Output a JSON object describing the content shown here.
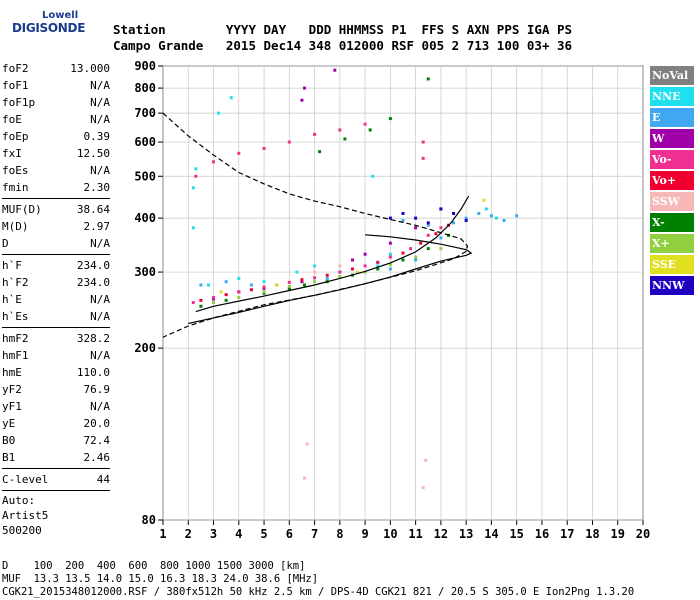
{
  "logo": {
    "line1": "Lowell",
    "line2": "DIGISONDE"
  },
  "header": {
    "row1": "Station        YYYY DAY   DDD HHMMSS P1  FFS S AXN PPS IGA PS",
    "row2": "Campo Grande   2015 Dec14 348 012000 RSF 005 2 713 100 03+ 36"
  },
  "params": {
    "group1": [
      {
        "name": "foF2",
        "value": "13.000"
      },
      {
        "name": "foF1",
        "value": "N/A"
      },
      {
        "name": "foF1p",
        "value": "N/A"
      },
      {
        "name": "foE",
        "value": "N/A"
      },
      {
        "name": "foEp",
        "value": "0.39"
      },
      {
        "name": "fxI",
        "value": "12.50"
      },
      {
        "name": "foEs",
        "value": "N/A"
      },
      {
        "name": "fmin",
        "value": "2.30"
      }
    ],
    "group2": [
      {
        "name": "MUF(D)",
        "value": "38.64"
      },
      {
        "name": "M(D)",
        "value": "2.97"
      },
      {
        "name": "D",
        "value": "N/A"
      }
    ],
    "group3": [
      {
        "name": "h`F",
        "value": "234.0"
      },
      {
        "name": "h`F2",
        "value": "234.0"
      },
      {
        "name": "h`E",
        "value": "N/A"
      },
      {
        "name": "h`Es",
        "value": "N/A"
      }
    ],
    "group4": [
      {
        "name": "hmF2",
        "value": "328.2"
      },
      {
        "name": "hmF1",
        "value": "N/A"
      },
      {
        "name": "hmE",
        "value": "110.0"
      },
      {
        "name": "yF2",
        "value": "76.9"
      },
      {
        "name": "yF1",
        "value": "N/A"
      },
      {
        "name": "yE",
        "value": "20.0"
      },
      {
        "name": "B0",
        "value": "72.4"
      },
      {
        "name": "B1",
        "value": "2.46"
      }
    ],
    "group5": [
      {
        "name": "C-level",
        "value": "44"
      }
    ],
    "free": [
      "Auto:",
      "Artist5",
      "500200"
    ]
  },
  "legend": [
    {
      "label": "NoVal",
      "color": "#808080"
    },
    {
      "label": "NNE",
      "color": "#20e0f0"
    },
    {
      "label": "E",
      "color": "#40a8f0"
    },
    {
      "label": "W",
      "color": "#a000a8"
    },
    {
      "label": "Vo-",
      "color": "#f03090"
    },
    {
      "label": "Vo+",
      "color": "#f00030"
    },
    {
      "label": "SSW",
      "color": "#f8b8b8"
    },
    {
      "label": "X-",
      "color": "#008000"
    },
    {
      "label": "X+",
      "color": "#90d040"
    },
    {
      "label": "SSE",
      "color": "#e0e020"
    },
    {
      "label": "NNW",
      "color": "#2000c0"
    }
  ],
  "footer": {
    "line1": "D    100  200  400  600  800 1000 1500 3000 [km]",
    "line2": "MUF  13.3 13.5 14.0 15.0 16.3 18.3 24.0 38.6 [MHz]",
    "line3": "CGK21_2015348012000.RSF / 380fx512h 50 kHz 2.5 km / DPS-4D CGK21 821 / 20.5 S 305.0 E Ion2Png 1.3.20"
  },
  "chart_data": {
    "type": "scatter",
    "xlim": [
      1,
      20
    ],
    "ylim": [
      80,
      900
    ],
    "yscale": "log",
    "xticks": [
      1,
      2,
      3,
      4,
      5,
      6,
      7,
      8,
      9,
      10,
      11,
      12,
      13,
      14,
      15,
      16,
      17,
      18,
      19,
      20
    ],
    "yticks": [
      80,
      200,
      300,
      400,
      500,
      600,
      700,
      800,
      900
    ],
    "grid": true,
    "series": [
      {
        "name": "E",
        "color": "#40a8f0",
        "points": [
          [
            2.5,
            280
          ],
          [
            3.5,
            285
          ],
          [
            4.5,
            280
          ],
          [
            6,
            275
          ],
          [
            7.5,
            290
          ],
          [
            9,
            300
          ],
          [
            10,
            305
          ],
          [
            11,
            320
          ],
          [
            12,
            360
          ],
          [
            12.5,
            390
          ],
          [
            13,
            400
          ],
          [
            13.5,
            410
          ],
          [
            14,
            405
          ],
          [
            14.5,
            395
          ],
          [
            15,
            405
          ],
          [
            10.5,
            395
          ],
          [
            11.5,
            385
          ]
        ]
      },
      {
        "name": "NNE",
        "color": "#20e0f0",
        "points": [
          [
            2.2,
            470
          ],
          [
            2.3,
            520
          ],
          [
            2.2,
            380
          ],
          [
            2.8,
            280
          ],
          [
            3.2,
            700
          ],
          [
            4,
            290
          ],
          [
            5,
            285
          ],
          [
            6.3,
            300
          ],
          [
            7,
            310
          ],
          [
            8,
            300
          ],
          [
            9.5,
            310
          ],
          [
            10,
            330
          ],
          [
            13.8,
            420
          ],
          [
            14.2,
            400
          ],
          [
            3.7,
            760
          ],
          [
            9.3,
            500
          ]
        ]
      },
      {
        "name": "W",
        "color": "#a000a8",
        "points": [
          [
            3,
            260
          ],
          [
            4,
            270
          ],
          [
            5,
            275
          ],
          [
            6.5,
            285
          ],
          [
            6.5,
            750
          ],
          [
            6.6,
            800
          ],
          [
            7.8,
            880
          ],
          [
            8.5,
            320
          ],
          [
            9,
            330
          ],
          [
            10,
            350
          ],
          [
            11,
            380
          ],
          [
            12,
            420
          ]
        ]
      },
      {
        "name": "Vo-",
        "color": "#f03090",
        "points": [
          [
            2.2,
            255
          ],
          [
            3,
            262
          ],
          [
            4,
            270
          ],
          [
            5,
            277
          ],
          [
            6,
            284
          ],
          [
            7,
            291
          ],
          [
            8,
            300
          ],
          [
            9,
            310
          ],
          [
            10,
            325
          ],
          [
            10.8,
            340
          ],
          [
            11.5,
            365
          ],
          [
            12,
            380
          ],
          [
            2.3,
            500
          ],
          [
            3,
            540
          ],
          [
            4,
            565
          ],
          [
            5,
            580
          ],
          [
            6,
            600
          ],
          [
            7,
            625
          ],
          [
            8,
            640
          ],
          [
            9,
            660
          ],
          [
            11.3,
            600
          ],
          [
            11.3,
            550
          ]
        ]
      },
      {
        "name": "Vo+",
        "color": "#f00030",
        "points": [
          [
            2.5,
            258
          ],
          [
            3.5,
            266
          ],
          [
            4.5,
            273
          ],
          [
            5.5,
            280
          ],
          [
            6.5,
            288
          ],
          [
            7.5,
            295
          ],
          [
            8.5,
            305
          ],
          [
            9.5,
            316
          ],
          [
            10.5,
            332
          ],
          [
            11.2,
            350
          ],
          [
            11.8,
            368
          ],
          [
            12.3,
            385
          ]
        ]
      },
      {
        "name": "SSW",
        "color": "#f8b8b8",
        "points": [
          [
            6.6,
            100
          ],
          [
            6.7,
            120
          ],
          [
            11.3,
            95
          ],
          [
            11.4,
            110
          ],
          [
            7,
            300
          ],
          [
            8,
            310
          ]
        ]
      },
      {
        "name": "X-",
        "color": "#008000",
        "points": [
          [
            2.5,
            250
          ],
          [
            3.5,
            258
          ],
          [
            5,
            268
          ],
          [
            6,
            275
          ],
          [
            7.5,
            285
          ],
          [
            8.5,
            295
          ],
          [
            9.5,
            305
          ],
          [
            10.5,
            320
          ],
          [
            11.5,
            340
          ],
          [
            12.3,
            365
          ],
          [
            6.6,
            280
          ],
          [
            7.2,
            570
          ],
          [
            8.2,
            610
          ],
          [
            9.2,
            640
          ],
          [
            10,
            680
          ],
          [
            11.5,
            840
          ]
        ]
      },
      {
        "name": "X+",
        "color": "#90d040",
        "points": [
          [
            3,
            255
          ],
          [
            4,
            262
          ],
          [
            5,
            270
          ],
          [
            6,
            278
          ],
          [
            7,
            285
          ],
          [
            8,
            293
          ],
          [
            9,
            300
          ],
          [
            10,
            312
          ],
          [
            11,
            325
          ],
          [
            12,
            340
          ]
        ]
      },
      {
        "name": "SSE",
        "color": "#e0e020",
        "points": [
          [
            3.3,
            270
          ],
          [
            5.5,
            280
          ],
          [
            8.7,
            300
          ],
          [
            12.5,
            410
          ],
          [
            13.7,
            440
          ]
        ]
      },
      {
        "name": "NNW",
        "color": "#2000c0",
        "points": [
          [
            10,
            400
          ],
          [
            10.5,
            410
          ],
          [
            11,
            400
          ],
          [
            11.5,
            390
          ],
          [
            12,
            420
          ],
          [
            12.5,
            410
          ],
          [
            13,
            395
          ]
        ]
      }
    ],
    "curves": [
      {
        "name": "profile",
        "style": "solid",
        "points": [
          [
            2,
            228
          ],
          [
            3,
            235
          ],
          [
            4,
            242
          ],
          [
            5,
            250
          ],
          [
            6,
            258
          ],
          [
            7,
            265
          ],
          [
            8,
            273
          ],
          [
            9,
            282
          ],
          [
            10,
            292
          ],
          [
            11,
            305
          ],
          [
            12,
            318
          ],
          [
            13,
            328
          ],
          [
            13.2,
            332
          ],
          [
            13,
            338
          ],
          [
            12,
            348
          ],
          [
            11,
            356
          ],
          [
            10,
            362
          ],
          [
            9,
            366
          ]
        ]
      },
      {
        "name": "trace",
        "style": "solid",
        "points": [
          [
            2.3,
            243
          ],
          [
            3,
            250
          ],
          [
            4,
            257
          ],
          [
            5,
            264
          ],
          [
            6,
            272
          ],
          [
            7,
            280
          ],
          [
            8,
            290
          ],
          [
            9,
            301
          ],
          [
            10,
            315
          ],
          [
            11,
            334
          ],
          [
            11.8,
            360
          ],
          [
            12.4,
            390
          ],
          [
            12.8,
            420
          ],
          [
            13.1,
            450
          ]
        ]
      },
      {
        "name": "muf",
        "style": "dashed",
        "points": [
          [
            1,
            700
          ],
          [
            2,
            620
          ],
          [
            3,
            560
          ],
          [
            4,
            510
          ],
          [
            5,
            480
          ],
          [
            6,
            455
          ],
          [
            7,
            438
          ],
          [
            8,
            425
          ],
          [
            9,
            410
          ],
          [
            10,
            397
          ],
          [
            11,
            385
          ],
          [
            12,
            370
          ],
          [
            12.8,
            358
          ],
          [
            13.05,
            345
          ],
          [
            13,
            335
          ],
          [
            12.5,
            322
          ],
          [
            11,
            302
          ],
          [
            9,
            282
          ],
          [
            7,
            265
          ],
          [
            5,
            252
          ],
          [
            3,
            235
          ],
          [
            2,
            225
          ],
          [
            1,
            212
          ]
        ]
      }
    ]
  }
}
